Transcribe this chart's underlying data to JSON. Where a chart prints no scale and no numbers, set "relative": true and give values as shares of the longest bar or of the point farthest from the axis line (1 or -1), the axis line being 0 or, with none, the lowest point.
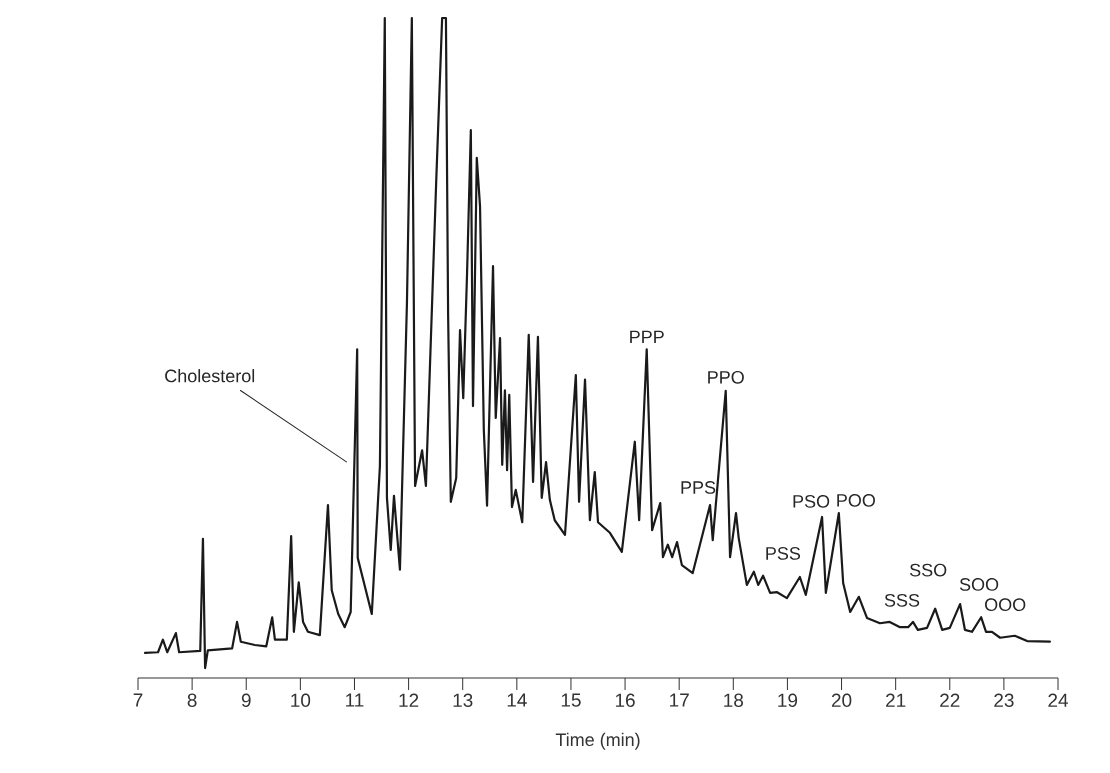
{
  "chart_data": {
    "type": "line",
    "relative": true,
    "xlabel": "Time (min)",
    "color": "#1a1a1a",
    "xlim": [
      7,
      24
    ],
    "xticks": [
      7,
      8,
      9,
      10,
      11,
      12,
      13,
      14,
      15,
      16,
      17,
      18,
      19,
      20,
      21,
      22,
      23,
      24
    ],
    "x": [
      7.13,
      7.37,
      7.46,
      7.54,
      7.7,
      7.76,
      8.15,
      8.2,
      8.24,
      8.29,
      8.74,
      8.83,
      8.9,
      9.16,
      9.37,
      9.48,
      9.53,
      9.75,
      9.83,
      9.88,
      9.97,
      10.05,
      10.14,
      10.36,
      10.51,
      10.58,
      10.7,
      10.82,
      10.93,
      11.05,
      11.06,
      11.21,
      11.32,
      11.47,
      11.56,
      11.6,
      11.67,
      11.73,
      11.84,
      11.97,
      12.06,
      12.12,
      12.25,
      12.32,
      12.51,
      12.62,
      12.69,
      12.73,
      12.78,
      12.88,
      12.95,
      13.01,
      13.08,
      13.15,
      13.19,
      13.26,
      13.32,
      13.39,
      13.45,
      13.56,
      13.61,
      13.69,
      13.73,
      13.78,
      13.82,
      13.86,
      13.91,
      13.98,
      14.1,
      14.22,
      14.3,
      14.39,
      14.46,
      14.54,
      14.61,
      14.7,
      14.89,
      15.09,
      15.15,
      15.26,
      15.35,
      15.44,
      15.5,
      15.72,
      15.94,
      16.18,
      16.26,
      16.4,
      16.5,
      16.65,
      16.7,
      16.79,
      16.87,
      16.96,
      17.05,
      17.25,
      17.57,
      17.62,
      17.86,
      17.94,
      18.05,
      18.1,
      18.25,
      18.38,
      18.46,
      18.55,
      18.68,
      18.81,
      18.99,
      19.23,
      19.34,
      19.64,
      19.71,
      19.95,
      20.03,
      20.16,
      20.32,
      20.47,
      20.71,
      20.89,
      21.08,
      21.23,
      21.32,
      21.41,
      21.58,
      21.73,
      21.86,
      22.0,
      22.19,
      22.28,
      22.41,
      22.58,
      22.67,
      22.78,
      22.93,
      23.2,
      23.43,
      23.85
    ],
    "values": [
      0.038,
      0.039,
      0.058,
      0.039,
      0.068,
      0.039,
      0.041,
      0.211,
      0.015,
      0.042,
      0.045,
      0.085,
      0.055,
      0.05,
      0.048,
      0.092,
      0.058,
      0.058,
      0.215,
      0.07,
      0.145,
      0.085,
      0.07,
      0.065,
      0.262,
      0.133,
      0.097,
      0.077,
      0.1,
      0.498,
      0.182,
      0.133,
      0.097,
      0.321,
      1,
      0.273,
      0.194,
      0.276,
      0.164,
      0.57,
      1,
      0.291,
      0.345,
      0.291,
      0.752,
      1,
      1,
      0.552,
      0.267,
      0.303,
      0.527,
      0.424,
      0.612,
      0.83,
      0.412,
      0.788,
      0.715,
      0.376,
      0.261,
      0.624,
      0.394,
      0.515,
      0.323,
      0.436,
      0.315,
      0.429,
      0.259,
      0.285,
      0.236,
      0.52,
      0.297,
      0.517,
      0.273,
      0.327,
      0.27,
      0.239,
      0.217,
      0.459,
      0.267,
      0.452,
      0.239,
      0.312,
      0.236,
      0.22,
      0.191,
      0.358,
      0.239,
      0.498,
      0.224,
      0.265,
      0.183,
      0.202,
      0.183,
      0.206,
      0.171,
      0.159,
      0.262,
      0.209,
      0.435,
      0.183,
      0.25,
      0.212,
      0.141,
      0.161,
      0.141,
      0.155,
      0.129,
      0.13,
      0.121,
      0.153,
      0.126,
      0.244,
      0.129,
      0.25,
      0.144,
      0.1,
      0.123,
      0.091,
      0.083,
      0.085,
      0.077,
      0.077,
      0.085,
      0.073,
      0.076,
      0.105,
      0.073,
      0.076,
      0.112,
      0.073,
      0.07,
      0.092,
      0.07,
      0.07,
      0.061,
      0.064,
      0.056,
      0.055
    ],
    "annotations": [
      "Cholesterol",
      {
        "text": "PPP",
        "x": 16.4,
        "y": 0.498
      },
      {
        "text": "PPS",
        "x": 17.57,
        "y": 0.262
      },
      {
        "text": "PPO",
        "x": 17.86,
        "y": 0.435
      },
      {
        "text": "PSS",
        "x": 19.23,
        "y": 0.153
      },
      {
        "text": "PSO",
        "x": 19.64,
        "y": 0.244
      },
      {
        "text": "POO",
        "x": 19.95,
        "y": 0.25
      },
      {
        "text": "SSS",
        "x": 21.32,
        "y": 0.085
      },
      {
        "text": "SSO",
        "x": 21.73,
        "y": 0.105
      },
      {
        "text": "SOO",
        "x": 22.19,
        "y": 0.112
      },
      {
        "text": "OOO",
        "x": 22.58,
        "y": 0.092
      }
    ]
  }
}
